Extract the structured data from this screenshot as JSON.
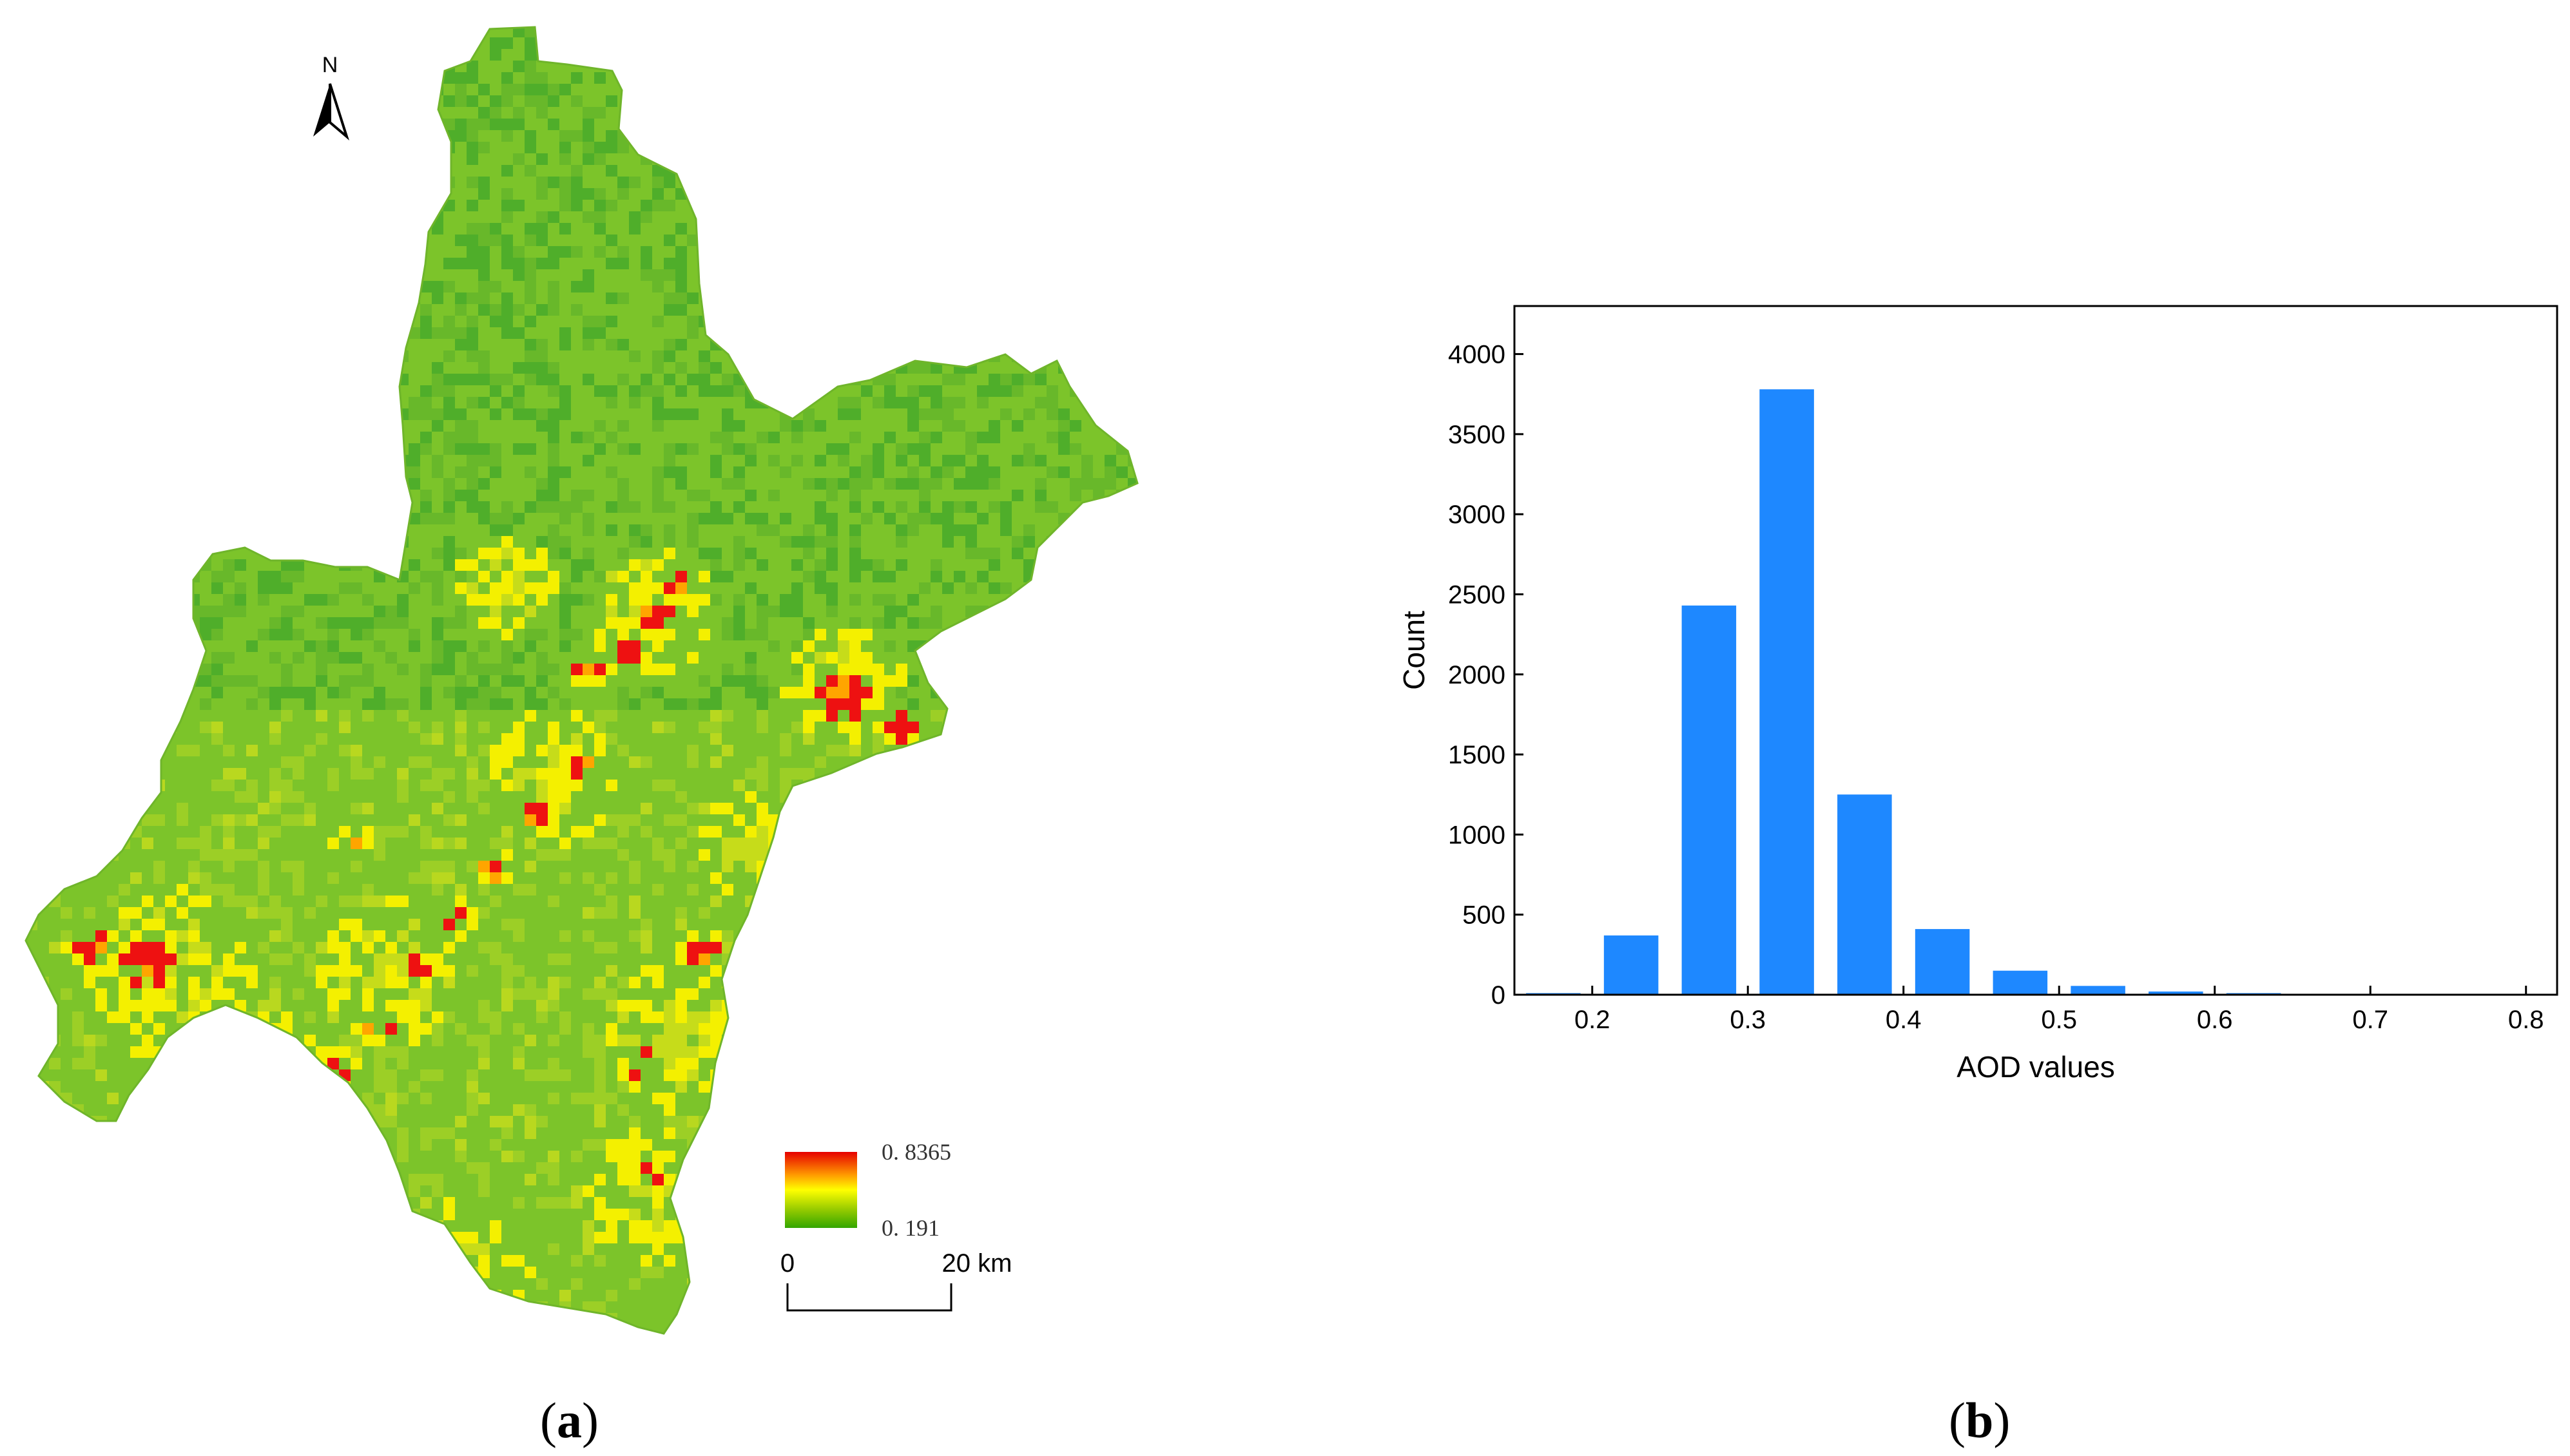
{
  "panels": {
    "a": {
      "open": "(",
      "letter": "a",
      "close": ")"
    },
    "b": {
      "open": "(",
      "letter": "b",
      "close": ")"
    }
  },
  "map": {
    "north_label": "N",
    "legend": {
      "max_label": "0. 8365",
      "min_label": "0. 191",
      "colors": [
        "#e60000",
        "#ff9900",
        "#ffff00",
        "#99cc00",
        "#33a600"
      ]
    },
    "scale_bar": {
      "start_label": "0",
      "end_label": "20 km"
    },
    "colors": {
      "base": "#7cc42a",
      "dark_green": "#4fae2a",
      "yellow": "#f4f000",
      "orange": "#ffa500",
      "red": "#ee1111"
    }
  },
  "chart_data": {
    "type": "bar",
    "xlabel": "AOD values",
    "ylabel": "Count",
    "xlim": [
      0.15,
      0.82
    ],
    "ylim": [
      0,
      4300
    ],
    "xticks": [
      "0.2",
      "0.3",
      "0.4",
      "0.5",
      "0.6",
      "0.7",
      "0.8"
    ],
    "yticks": [
      "0",
      "500",
      "1000",
      "1500",
      "2000",
      "2500",
      "3000",
      "3500",
      "4000"
    ],
    "bar_width": 0.035,
    "bar_color": "#1e88ff",
    "x": [
      0.175,
      0.225,
      0.275,
      0.325,
      0.375,
      0.425,
      0.475,
      0.525,
      0.575,
      0.625,
      0.675,
      0.725,
      0.775
    ],
    "values": [
      10,
      370,
      2430,
      3780,
      1250,
      410,
      150,
      55,
      20,
      10,
      5,
      5,
      3
    ]
  }
}
